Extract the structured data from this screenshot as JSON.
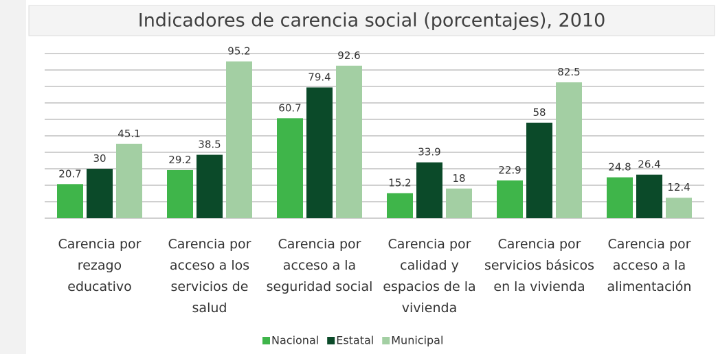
{
  "chart_data": {
    "type": "bar",
    "title": "Indicadores de carencia social (porcentajes), 2010",
    "categories": [
      "Carencia por rezago educativo",
      "Carencia por acceso a los servicios de salud",
      "Carencia por acceso a la seguridad social",
      "Carencia por calidad y espacios de la vivienda",
      "Carencia por servicios básicos en la vivienda",
      "Carencia por acceso a la alimentación"
    ],
    "series": [
      {
        "name": "Nacional",
        "color": "#3fb54a",
        "values": [
          20.7,
          29.2,
          60.7,
          15.2,
          22.9,
          24.8
        ]
      },
      {
        "name": "Estatal",
        "color": "#0b4a29",
        "values": [
          30,
          38.5,
          79.4,
          33.9,
          58,
          26.4
        ]
      },
      {
        "name": "Municipal",
        "color": "#a3cfa3",
        "values": [
          45.1,
          95.2,
          92.6,
          18,
          82.5,
          12.4
        ]
      }
    ],
    "ylim": [
      0,
      100
    ],
    "yticks": [
      0,
      10,
      20,
      30,
      40,
      50,
      60,
      70,
      80,
      90,
      100
    ],
    "grid": true,
    "legend": "bottom"
  }
}
